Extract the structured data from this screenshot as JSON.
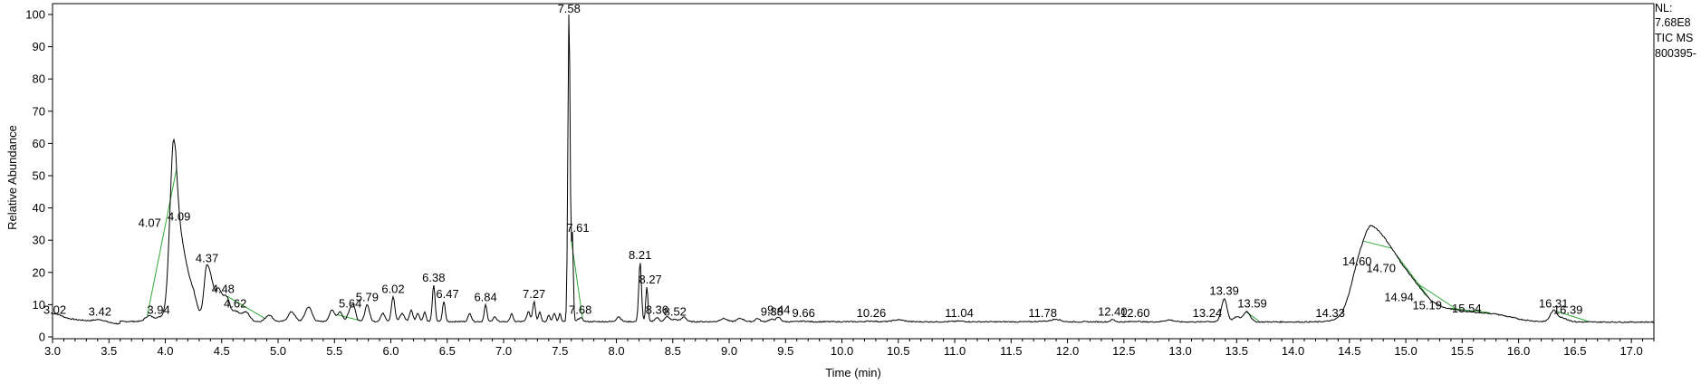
{
  "chart_data": {
    "type": "line",
    "xlabel": "Time (min)",
    "ylabel": "Relative Abundance",
    "xlim": [
      3.0,
      17.2
    ],
    "ylim": [
      0,
      102
    ],
    "x_ticks": [
      "3.0",
      "3.5",
      "4.0",
      "4.5",
      "5.0",
      "5.5",
      "6.0",
      "6.5",
      "7.0",
      "7.5",
      "8.0",
      "8.5",
      "9.0",
      "9.5",
      "10.0",
      "10.5",
      "11.0",
      "11.5",
      "12.0",
      "12.5",
      "13.0",
      "13.5",
      "14.0",
      "14.5",
      "15.0",
      "15.5",
      "16.0",
      "16.5",
      "17.0"
    ],
    "y_ticks": [
      "0",
      "10",
      "20",
      "30",
      "40",
      "50",
      "60",
      "70",
      "80",
      "90",
      "100"
    ],
    "baseline": 4.8,
    "grid": false,
    "line_color": "#000000",
    "integration_color": "#2ea836",
    "info_text": [
      "NL:",
      "7.68E8",
      "TIC  MS",
      "800395-"
    ],
    "peaks": [
      {
        "rt": 3.02,
        "label": "3.02",
        "height": 6.0
      },
      {
        "rt": 3.42,
        "label": "3.42",
        "height": 5.5
      },
      {
        "rt": 3.94,
        "label": "3.94",
        "height": 6.0
      },
      {
        "rt": 4.07,
        "label": "4.07",
        "height": 33.0
      },
      {
        "rt": 4.09,
        "label": "4.09",
        "height": 35.0
      },
      {
        "rt": 4.37,
        "label": "4.37",
        "height": 22.0
      },
      {
        "rt": 4.48,
        "label": "4.48",
        "height": 12.5
      },
      {
        "rt": 4.62,
        "label": "4.62",
        "height": 8.0
      },
      {
        "rt": 5.64,
        "label": "5.64",
        "height": 8.0
      },
      {
        "rt": 5.79,
        "label": "5.79",
        "height": 10.0
      },
      {
        "rt": 6.02,
        "label": "6.02",
        "height": 12.5
      },
      {
        "rt": 6.38,
        "label": "6.38",
        "height": 16.0
      },
      {
        "rt": 6.47,
        "label": "6.47",
        "height": 11.0
      },
      {
        "rt": 6.84,
        "label": "6.84",
        "height": 10.0
      },
      {
        "rt": 7.27,
        "label": "7.27",
        "height": 11.0
      },
      {
        "rt": 7.58,
        "label": "7.58",
        "height": 100.0
      },
      {
        "rt": 7.61,
        "label": "7.61",
        "height": 31.5
      },
      {
        "rt": 7.68,
        "label": "7.68",
        "height": 6.0
      },
      {
        "rt": 8.21,
        "label": "8.21",
        "height": 23.0
      },
      {
        "rt": 8.27,
        "label": "8.27",
        "height": 15.5
      },
      {
        "rt": 8.36,
        "label": "8.36",
        "height": 6.0
      },
      {
        "rt": 8.52,
        "label": "8.52",
        "height": 5.5
      },
      {
        "rt": 9.38,
        "label": "9.38",
        "height": 5.5
      },
      {
        "rt": 9.44,
        "label": "9.44",
        "height": 6.0
      },
      {
        "rt": 9.66,
        "label": "9.66",
        "height": 5.0
      },
      {
        "rt": 10.26,
        "label": "10.26",
        "height": 5.0
      },
      {
        "rt": 11.04,
        "label": "11.04",
        "height": 5.0
      },
      {
        "rt": 11.78,
        "label": "11.78",
        "height": 5.0
      },
      {
        "rt": 12.4,
        "label": "12.40",
        "height": 5.5
      },
      {
        "rt": 12.6,
        "label": "12.60",
        "height": 5.0
      },
      {
        "rt": 13.24,
        "label": "13.24",
        "height": 5.0
      },
      {
        "rt": 13.39,
        "label": "13.39",
        "height": 12.0
      },
      {
        "rt": 13.59,
        "label": "13.59",
        "height": 8.0
      },
      {
        "rt": 14.33,
        "label": "14.33",
        "height": 5.0
      },
      {
        "rt": 14.6,
        "label": "14.60",
        "height": 21.0
      },
      {
        "rt": 14.7,
        "label": "14.70",
        "height": 19.0
      },
      {
        "rt": 14.94,
        "label": "14.94",
        "height": 10.0
      },
      {
        "rt": 15.19,
        "label": "15.19",
        "height": 7.5
      },
      {
        "rt": 15.54,
        "label": "15.54",
        "height": 6.5
      },
      {
        "rt": 16.31,
        "label": "16.31",
        "height": 8.0
      },
      {
        "rt": 16.39,
        "label": "16.39",
        "height": 6.0
      }
    ]
  }
}
